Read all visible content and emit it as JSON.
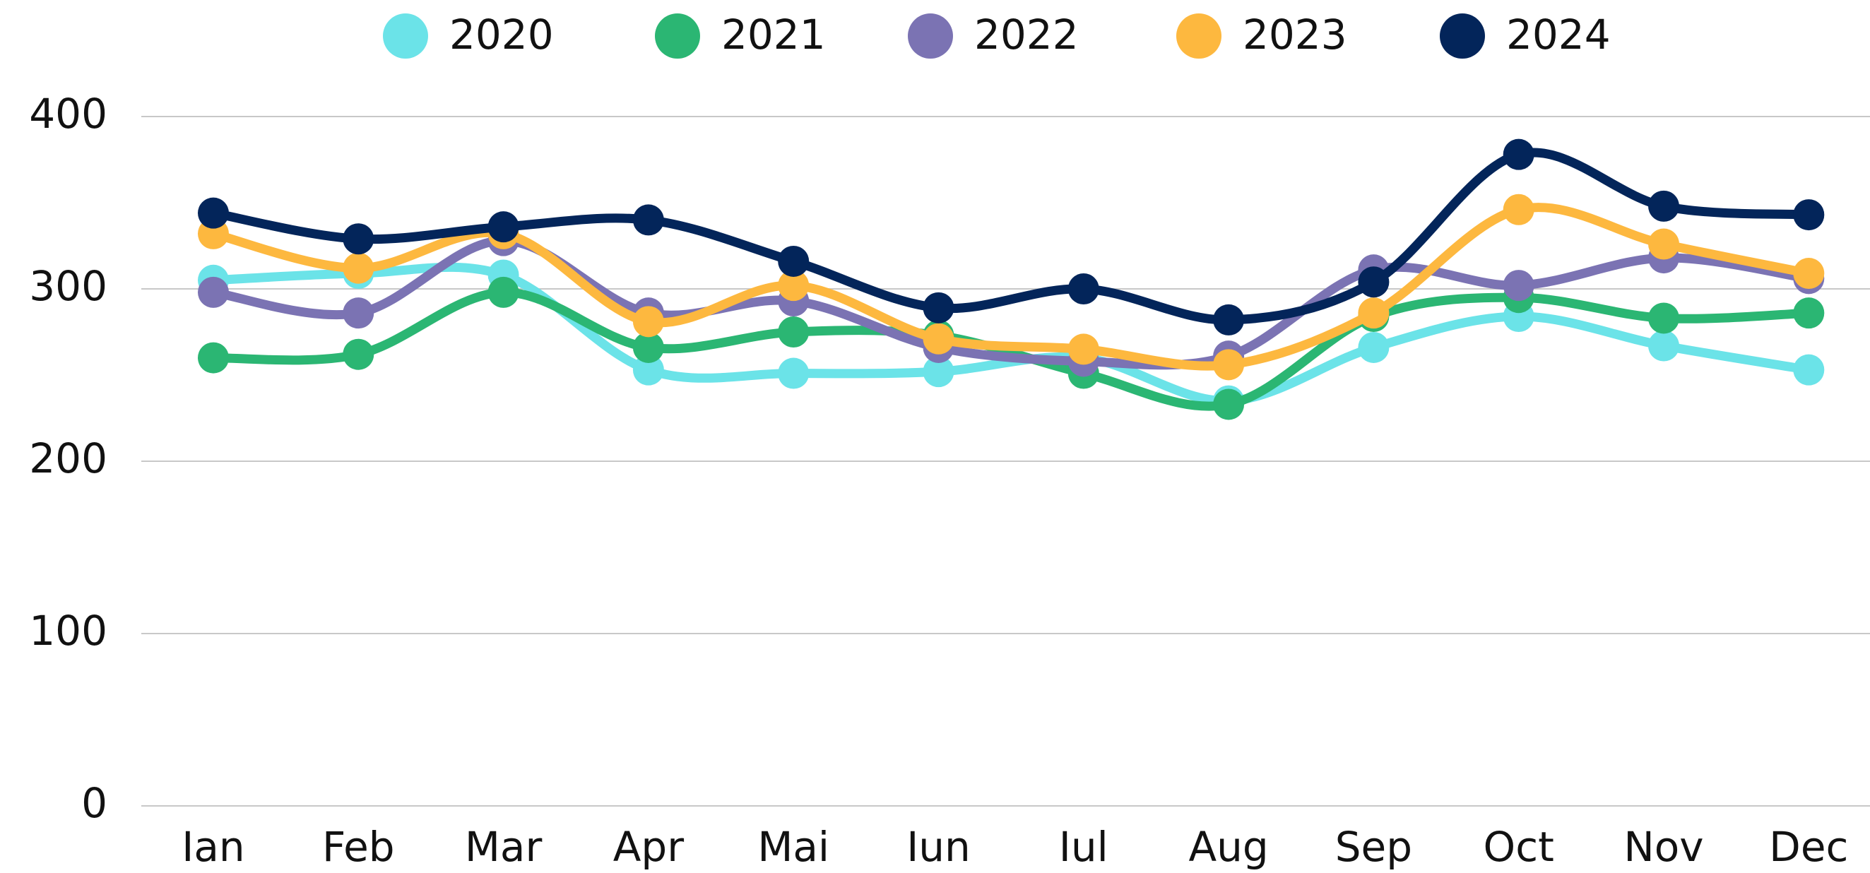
{
  "chart_data": {
    "type": "line",
    "categories": [
      "Ian",
      "Feb",
      "Mar",
      "Apr",
      "Mai",
      "Iun",
      "Iul",
      "Aug",
      "Sep",
      "Oct",
      "Nov",
      "Dec"
    ],
    "series": [
      {
        "name": "2020",
        "color": "#6be3e8",
        "values": [
          305,
          309,
          308,
          253,
          251,
          252,
          260,
          235,
          266,
          284,
          267,
          253
        ]
      },
      {
        "name": "2021",
        "color": "#2bb673",
        "values": [
          260,
          262,
          298,
          266,
          275,
          273,
          251,
          233,
          284,
          295,
          283,
          286
        ]
      },
      {
        "name": "2022",
        "color": "#7b73b3",
        "values": [
          298,
          286,
          328,
          286,
          293,
          266,
          258,
          261,
          311,
          302,
          318,
          306
        ]
      },
      {
        "name": "2023",
        "color": "#fdb83f",
        "values": [
          332,
          312,
          332,
          281,
          302,
          271,
          265,
          256,
          286,
          346,
          326,
          309
        ]
      },
      {
        "name": "2024",
        "color": "#03255a",
        "values": [
          344,
          329,
          336,
          340,
          316,
          289,
          300,
          282,
          304,
          378,
          348,
          343
        ]
      }
    ],
    "ylim": [
      0,
      400
    ],
    "yticks": [
      0,
      100,
      200,
      300,
      400
    ],
    "grid": true,
    "legend": "top"
  }
}
